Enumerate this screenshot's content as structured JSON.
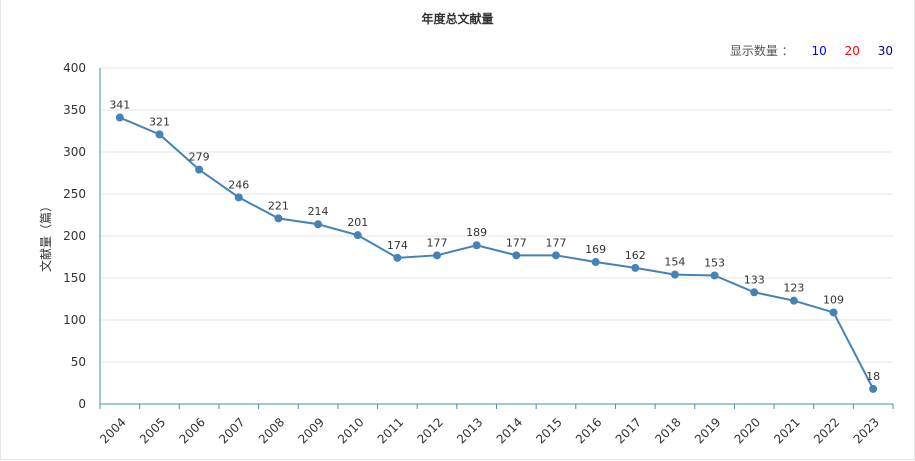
{
  "chart_data": {
    "type": "line",
    "title": "年度总文献量",
    "ylabel": "文献量（篇）",
    "xlabel": "",
    "ylim": [
      0,
      400
    ],
    "yticks": [
      0,
      50,
      100,
      150,
      200,
      250,
      300,
      350,
      400
    ],
    "categories": [
      "2004",
      "2005",
      "2006",
      "2007",
      "2008",
      "2009",
      "2010",
      "2011",
      "2012",
      "2013",
      "2014",
      "2015",
      "2016",
      "2017",
      "2018",
      "2019",
      "2020",
      "2021",
      "2022",
      "2023"
    ],
    "values": [
      341,
      321,
      279,
      246,
      221,
      214,
      201,
      174,
      177,
      189,
      177,
      177,
      169,
      162,
      154,
      153,
      133,
      123,
      109,
      18
    ],
    "grid": true,
    "line_color": "#4682b4"
  },
  "controls": {
    "label": "显示数量 ：",
    "options": [
      {
        "text": "10",
        "color": "#0000ff"
      },
      {
        "text": "20",
        "color": "#ff0000"
      },
      {
        "text": "30",
        "color": "#000080"
      }
    ]
  }
}
